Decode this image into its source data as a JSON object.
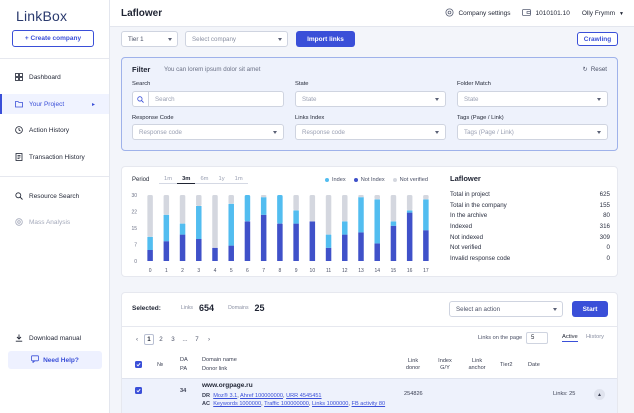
{
  "app": {
    "logo": "LinkBox",
    "create_company": "+ Create company"
  },
  "sidebar": {
    "items": [
      {
        "label": "Dashboard",
        "icon": "dashboard-icon"
      },
      {
        "label": "Your Project",
        "icon": "folder-icon",
        "active": true
      },
      {
        "label": "Action History",
        "icon": "clock-icon"
      },
      {
        "label": "Transaction History",
        "icon": "receipt-icon"
      },
      {
        "label": "Resource Search",
        "icon": "search-icon"
      },
      {
        "label": "Mass Analysis",
        "icon": "target-icon",
        "disabled": true
      }
    ],
    "download_manual": "Download manual",
    "need_help": "Need Help?"
  },
  "header": {
    "title": "Laflower",
    "company_settings": "Company settings",
    "balance": "1010101.10",
    "user": "Olly Frymm"
  },
  "toolbar": {
    "tier_select": "Tier 1",
    "company_select_placeholder": "Select company",
    "import_links": "Import links",
    "crawling": "Crawling"
  },
  "filter": {
    "title": "Filter",
    "description": "You can lorem ipsum dolor sit amet",
    "reset": "Reset",
    "search_label": "Search",
    "search_placeholder": "Search",
    "state_label": "State",
    "state_placeholder": "State",
    "folder_label": "Folder Match",
    "folder_placeholder": "State",
    "response_label": "Response Code",
    "response_placeholder": "Response code",
    "links_index_label": "Links Index",
    "links_index_placeholder": "Response code",
    "tags_label": "Tags (Page / Link)",
    "tags_placeholder": "Tags (Page / Link)"
  },
  "period": {
    "label": "Period",
    "tabs": [
      "1m",
      "3m",
      "6m",
      "1y",
      "1m"
    ],
    "active_index": 1
  },
  "chart_data": {
    "type": "bar",
    "stacked": true,
    "categories": [
      "0",
      "1",
      "2",
      "3",
      "4",
      "5",
      "6",
      "7",
      "8",
      "9",
      "10",
      "11",
      "12",
      "13",
      "14",
      "15",
      "16",
      "17"
    ],
    "yticks": [
      "30",
      "22",
      "15",
      "7",
      "0"
    ],
    "ylim": [
      0,
      30
    ],
    "series": [
      {
        "name": "Not Index",
        "color": "#3f51c9",
        "values": [
          5,
          9,
          12,
          10,
          6,
          7,
          18,
          21,
          17,
          17,
          18,
          6,
          12,
          13,
          8,
          16,
          22,
          14
        ]
      },
      {
        "name": "Index",
        "color": "#52bdf0",
        "values": [
          6,
          12,
          5,
          15,
          0,
          19,
          12,
          8,
          13,
          6,
          0,
          6,
          6,
          16,
          20,
          2,
          1,
          14
        ]
      },
      {
        "name": "Not verified",
        "color": "#d4d7df",
        "values": [
          19,
          9,
          13,
          5,
          24,
          4,
          0,
          1,
          0,
          7,
          12,
          18,
          12,
          1,
          2,
          12,
          7,
          2
        ]
      }
    ],
    "legend": [
      "Index",
      "Not Index",
      "Not verified"
    ],
    "legend_colors": [
      "#52bdf0",
      "#3f51c9",
      "#d4d7df"
    ]
  },
  "stats": {
    "title": "Laflower",
    "rows": [
      {
        "label": "Total in project",
        "value": "625"
      },
      {
        "label": "Total in the company",
        "value": "155"
      },
      {
        "label": "In the archive",
        "value": "80"
      },
      {
        "label": "Indexed",
        "value": "316"
      },
      {
        "label": "Not indexed",
        "value": "309"
      },
      {
        "label": "Not verified",
        "value": "0"
      },
      {
        "label": "Invalid response code",
        "value": "0"
      }
    ]
  },
  "selection": {
    "selected_label": "Selected:",
    "links_label": "Links",
    "links_value": "654",
    "domains_label": "Domains",
    "domains_value": "25",
    "action_placeholder": "Select an action",
    "start": "Start"
  },
  "pagination": {
    "pages": [
      "1",
      "2",
      "3",
      "...",
      "7"
    ],
    "links_on_page_label": "Links on the page",
    "links_on_page_value": "5",
    "active_tab": "Active",
    "history_tab": "History"
  },
  "table": {
    "headers": {
      "no": "№",
      "da": "DA",
      "pa": "PA",
      "domain_name": "Domain name",
      "donor_link": "Donor link",
      "link_donor": "Link donor",
      "index_gy": "Index G/Y",
      "link_anchor": "Link anchor",
      "tier2": "Tier2",
      "date": "Date"
    },
    "row": {
      "da_value": "34",
      "domain": "www.orgpage.ru",
      "dr_label": "DR",
      "dr_text": "Moz® 3.1",
      "ahrefs": "Ahref 100000000",
      "urr": "URR 4545451",
      "ac_label": "AC",
      "keywords": "Keywords 1000000",
      "traffic": "Traffic 100000000",
      "links": "Links 1000000",
      "fb": "FB activity 80",
      "link_donor_value": "254826",
      "links_count": "Links: 25"
    }
  }
}
